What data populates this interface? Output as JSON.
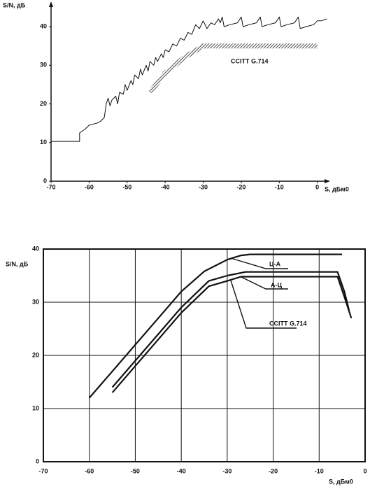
{
  "chart_data": [
    {
      "type": "line",
      "y_label": "S/N, дБ",
      "x_label": "S, дБм0",
      "xlim": [
        -70,
        3
      ],
      "ylim": [
        0,
        44
      ],
      "xticks": [
        -70,
        -60,
        -50,
        -40,
        -30,
        -20,
        -10,
        0
      ],
      "yticks": [
        0,
        10,
        20,
        30,
        40
      ],
      "grid": false,
      "series": [
        {
          "color": "#111111",
          "x": [
            -70,
            -62.5,
            -62.5,
            -61,
            -60,
            -58,
            -57,
            -56,
            -55.5,
            -55,
            -54.5,
            -54,
            -53,
            -52.5,
            -52,
            -51,
            -50.5,
            -50,
            -49,
            -48.5,
            -48,
            -47,
            -46.5,
            -46,
            -45,
            -44.5,
            -44,
            -43,
            -42.5,
            -42,
            -41,
            -40.5,
            -40,
            -39,
            -38,
            -37,
            -36,
            -35,
            -34,
            -33,
            -32,
            -31,
            -30,
            -29,
            -28,
            -27,
            -26,
            -25.5,
            -25,
            -24.5,
            -23,
            -21,
            -20,
            -19.5,
            -18,
            -16,
            -15,
            -14.5,
            -13,
            -11,
            -10,
            -9.5,
            -8,
            -6,
            -5,
            -4.5,
            -3,
            -1,
            0,
            1,
            2.5
          ],
          "values": [
            10.3,
            10.3,
            12.5,
            13.5,
            14.5,
            15,
            15.5,
            16.5,
            20,
            21.5,
            19.5,
            21,
            22,
            20,
            23,
            22.5,
            25,
            23.5,
            26,
            25,
            27.5,
            26.5,
            29,
            27.5,
            30,
            28.5,
            31,
            30,
            32,
            31,
            33,
            32,
            34,
            33.5,
            35.5,
            35,
            37,
            36.5,
            38.5,
            38,
            40.5,
            39.5,
            41.5,
            39.5,
            41,
            40.5,
            42,
            41,
            42.5,
            40,
            40.5,
            41,
            42.5,
            40,
            40.5,
            41,
            42.5,
            40,
            40.5,
            41,
            42.5,
            40,
            40.5,
            41,
            42.5,
            39.5,
            40,
            40.5,
            41.5,
            41.5,
            42
          ]
        },
        {
          "name": "CCITT G.714",
          "color": "#333333",
          "band": true,
          "x": [
            -44,
            -40,
            -35,
            -30,
            0
          ],
          "values": [
            23,
            28,
            32,
            35,
            35
          ]
        }
      ]
    },
    {
      "type": "line",
      "y_label": "S/N, дБ",
      "x_label": "S, дБм0",
      "xlim": [
        -70,
        0
      ],
      "ylim": [
        0,
        40
      ],
      "xticks": [
        -70,
        -60,
        -50,
        -40,
        -30,
        -20,
        -10,
        0
      ],
      "yticks": [
        0,
        10,
        20,
        30,
        40
      ],
      "grid": true,
      "series": [
        {
          "name": "Ц-А",
          "color": "#111111",
          "x": [
            -60,
            -55,
            -50,
            -45,
            -40,
            -35,
            -30,
            -27,
            -25,
            -20,
            -10,
            -5
          ],
          "values": [
            12,
            17,
            22,
            27,
            32,
            35.8,
            38,
            38.8,
            39,
            39,
            39,
            39
          ]
        },
        {
          "name": "А-Ц",
          "color": "#111111",
          "x": [
            -55,
            -50,
            -45,
            -40,
            -34,
            -30,
            -26,
            -20,
            -10,
            -6,
            -4.5,
            -3.5
          ],
          "values": [
            14,
            19,
            24,
            29,
            34,
            35,
            35.7,
            35.7,
            35.7,
            35.7,
            32,
            28.5
          ]
        },
        {
          "name": "CCITT G.714",
          "color": "#111111",
          "x": [
            -55,
            -50,
            -45,
            -40,
            -34,
            -30,
            -27,
            -20,
            -6,
            -4.5,
            -3
          ],
          "values": [
            13,
            18,
            23,
            28,
            33,
            34,
            34.8,
            34.8,
            34.8,
            31,
            27
          ]
        }
      ]
    }
  ]
}
